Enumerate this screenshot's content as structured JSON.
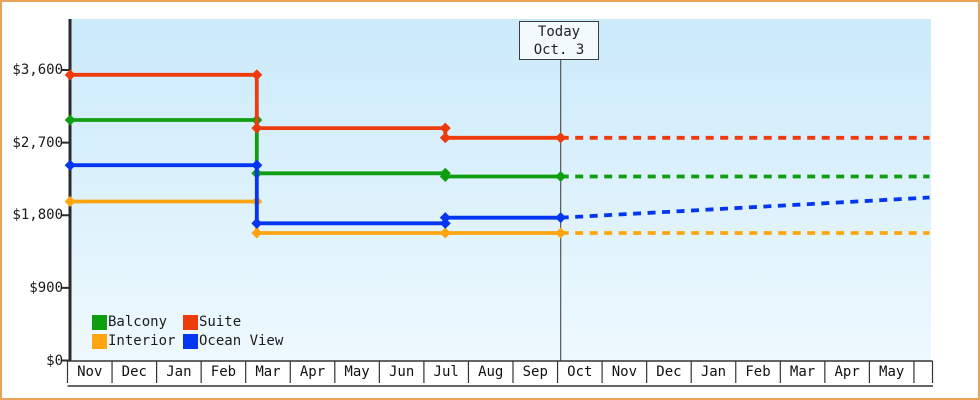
{
  "page": {
    "border_color": "#e8a356",
    "background": "#ffffff"
  },
  "colors": {
    "plot_bg_top": "#cbeafa",
    "plot_bg_bottom": "#eef9fe",
    "axis": "#2b2b2b",
    "table_lines": "#333333",
    "today_line": "#555555",
    "text": "#1a1a1a"
  },
  "chart_data": {
    "type": "line",
    "style": "step-line price trend with dashed future projection",
    "y_axis": {
      "ticks": [
        {
          "label": "$0",
          "value": 0
        },
        {
          "label": "$900",
          "value": 900
        },
        {
          "label": "$1,800",
          "value": 1800
        },
        {
          "label": "$2,700",
          "value": 2700
        },
        {
          "label": "$3,600",
          "value": 3600
        }
      ],
      "max": 3600
    },
    "x_axis": {
      "months": [
        "Nov",
        "Dec",
        "Jan",
        "Feb",
        "Mar",
        "Apr",
        "May",
        "Jun",
        "Jul",
        "Aug",
        "Sep",
        "Oct",
        "Nov",
        "Dec",
        "Jan",
        "Feb",
        "Mar",
        "Apr",
        "May"
      ],
      "has_trailing_empty_cell": true
    },
    "today": {
      "label": "Today",
      "date": "Oct. 3",
      "month_fraction": 11.07
    },
    "legend_position": "bottom-left",
    "series": [
      {
        "id": "balcony",
        "name": "Balcony",
        "color": "#0f9e0f",
        "solid_points": [
          [
            0.06,
            2980
          ],
          [
            4.25,
            2980
          ],
          [
            4.25,
            2320
          ],
          [
            8.48,
            2320
          ],
          [
            8.48,
            2280
          ],
          [
            11.07,
            2280
          ]
        ],
        "dashed_points": [
          [
            11.07,
            2280
          ],
          [
            19.35,
            2280
          ]
        ],
        "extra_markers": []
      },
      {
        "id": "suite",
        "name": "Suite",
        "color": "#ee3b0c",
        "solid_points": [
          [
            0.06,
            3540
          ],
          [
            4.25,
            3540
          ],
          [
            4.25,
            2880
          ],
          [
            8.48,
            2880
          ],
          [
            8.48,
            2760
          ],
          [
            11.07,
            2760
          ]
        ],
        "dashed_points": [
          [
            11.07,
            2760
          ],
          [
            19.35,
            2760
          ]
        ],
        "extra_markers": []
      },
      {
        "id": "interior",
        "name": "Interior",
        "color": "#ffa510",
        "solid_points": [
          [
            0.06,
            1970
          ],
          [
            4.25,
            1970
          ],
          [
            4.25,
            1580
          ],
          [
            11.07,
            1580
          ]
        ],
        "dashed_points": [
          [
            11.07,
            1580
          ],
          [
            19.35,
            1580
          ]
        ],
        "extra_markers": [
          [
            8.48,
            1580
          ]
        ]
      },
      {
        "id": "ocean_view",
        "name": "Ocean View",
        "color": "#0435f0",
        "solid_points": [
          [
            0.06,
            2420
          ],
          [
            4.25,
            2420
          ],
          [
            4.25,
            1700
          ],
          [
            8.48,
            1700
          ],
          [
            8.48,
            1770
          ],
          [
            11.07,
            1770
          ]
        ],
        "dashed_points": [
          [
            11.07,
            1770
          ],
          [
            19.35,
            2020
          ]
        ],
        "extra_markers": []
      }
    ]
  }
}
